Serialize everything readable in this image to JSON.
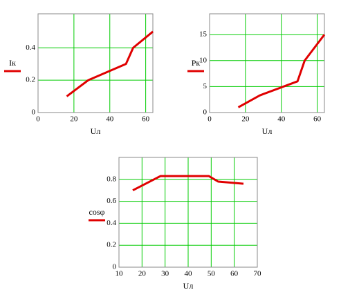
{
  "chart_data": [
    {
      "type": "line",
      "y_label": "Iк",
      "x_label": "Uл",
      "x": [
        16,
        28,
        49,
        53,
        64
      ],
      "series": [
        {
          "name": "Iк",
          "color": "#e00000",
          "values": [
            0.1,
            0.2,
            0.3,
            0.4,
            0.5
          ]
        }
      ],
      "xlim": [
        0,
        64
      ],
      "xticks": [
        0,
        20,
        40,
        60
      ],
      "ylim": [
        0,
        0.61
      ],
      "yticks": [
        0,
        0.2,
        0.4
      ],
      "grid": true,
      "grid_color": "#00cc00"
    },
    {
      "type": "line",
      "y_label": "Pк",
      "x_label": "Uл",
      "x": [
        16,
        28,
        49,
        53,
        64
      ],
      "series": [
        {
          "name": "Pк",
          "color": "#e00000",
          "values": [
            1,
            3.3,
            6,
            10,
            15
          ]
        }
      ],
      "xlim": [
        0,
        64
      ],
      "xticks": [
        0,
        20,
        40,
        60
      ],
      "ylim": [
        0,
        19
      ],
      "yticks": [
        0,
        5,
        10,
        15
      ],
      "grid": true,
      "grid_color": "#00cc00"
    },
    {
      "type": "line",
      "y_label": "cosφ",
      "x_label": "Uл",
      "x": [
        16,
        28,
        49,
        53,
        64
      ],
      "series": [
        {
          "name": "cosφ",
          "color": "#e00000",
          "values": [
            0.7,
            0.83,
            0.83,
            0.78,
            0.76
          ]
        }
      ],
      "xlim": [
        10,
        70
      ],
      "xticks": [
        10,
        20,
        30,
        40,
        50,
        60,
        70
      ],
      "ylim": [
        0,
        1
      ],
      "yticks": [
        0,
        0.2,
        0.4,
        0.6,
        0.8
      ],
      "grid": true,
      "grid_color": "#00cc00"
    }
  ]
}
